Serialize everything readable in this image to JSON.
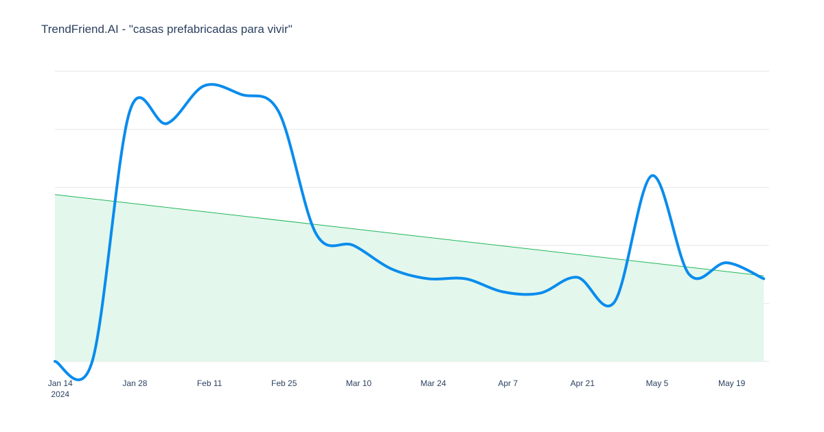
{
  "chart_data": {
    "type": "line",
    "title": "TrendFriend.AI - \"casas prefabricadas para vivir\"",
    "xlabel": "",
    "ylabel": "",
    "x_ticks": [
      {
        "date": "2024-01-14",
        "label": "Jan 14",
        "sublabel": "2024"
      },
      {
        "date": "2024-01-28",
        "label": "Jan 28",
        "sublabel": ""
      },
      {
        "date": "2024-02-11",
        "label": "Feb 11",
        "sublabel": ""
      },
      {
        "date": "2024-02-25",
        "label": "Feb 25",
        "sublabel": ""
      },
      {
        "date": "2024-03-10",
        "label": "Mar 10",
        "sublabel": ""
      },
      {
        "date": "2024-03-24",
        "label": "Mar 24",
        "sublabel": ""
      },
      {
        "date": "2024-04-07",
        "label": "Apr 7",
        "sublabel": ""
      },
      {
        "date": "2024-04-21",
        "label": "Apr 21",
        "sublabel": ""
      },
      {
        "date": "2024-05-05",
        "label": "May 5",
        "sublabel": ""
      },
      {
        "date": "2024-05-19",
        "label": "May 19",
        "sublabel": ""
      }
    ],
    "xlim": [
      "2024-01-13",
      "2024-05-26"
    ],
    "ylim": [
      0,
      100
    ],
    "y_gridlines": [
      0,
      20,
      40,
      60,
      80,
      100
    ],
    "grid": true,
    "legend": "none",
    "series": [
      {
        "kind": "line",
        "color": "#0a8ced",
        "points": [
          {
            "x": "2024-01-13",
            "y": 0
          },
          {
            "x": "2024-01-20",
            "y": 0
          },
          {
            "x": "2024-01-27",
            "y": 86
          },
          {
            "x": "2024-02-03",
            "y": 82
          },
          {
            "x": "2024-02-10",
            "y": 95
          },
          {
            "x": "2024-02-17",
            "y": 92
          },
          {
            "x": "2024-02-24",
            "y": 86
          },
          {
            "x": "2024-03-02",
            "y": 44
          },
          {
            "x": "2024-03-09",
            "y": 40
          },
          {
            "x": "2024-03-16",
            "y": 32
          },
          {
            "x": "2024-03-23",
            "y": 28.5
          },
          {
            "x": "2024-03-30",
            "y": 28.5
          },
          {
            "x": "2024-04-06",
            "y": 24
          },
          {
            "x": "2024-04-13",
            "y": 23.5
          },
          {
            "x": "2024-04-20",
            "y": 29
          },
          {
            "x": "2024-04-27",
            "y": 20.5
          },
          {
            "x": "2024-05-04",
            "y": 64
          },
          {
            "x": "2024-05-11",
            "y": 30
          },
          {
            "x": "2024-05-18",
            "y": 34
          },
          {
            "x": "2024-05-25",
            "y": 28.5
          }
        ]
      },
      {
        "kind": "trend-area",
        "color": "#1fb65a",
        "fill": "#e3f7ec",
        "points": [
          {
            "x": "2024-01-13",
            "y": 57.5
          },
          {
            "x": "2024-05-25",
            "y": 29.5
          }
        ]
      }
    ]
  },
  "colors": {
    "text": "#2a3f5f",
    "grid": "#e6e6e6"
  }
}
